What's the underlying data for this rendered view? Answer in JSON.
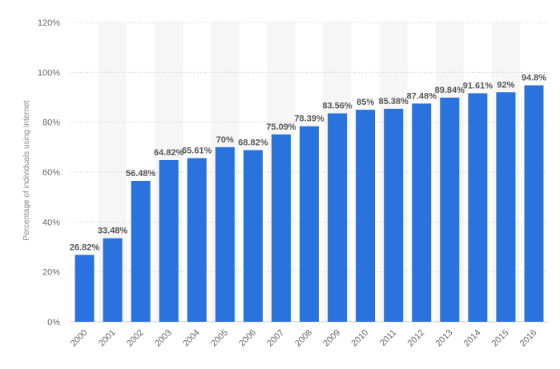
{
  "chart_data": {
    "type": "bar",
    "categories": [
      "2000",
      "2001",
      "2002",
      "2003",
      "2004",
      "2005",
      "2006",
      "2007",
      "2008",
      "2009",
      "2010",
      "2011",
      "2012",
      "2013",
      "2014",
      "2015",
      "2016"
    ],
    "values": [
      26.82,
      33.48,
      56.48,
      64.82,
      65.61,
      70,
      68.82,
      75.09,
      78.39,
      83.56,
      85,
      85.38,
      87.48,
      89.84,
      91.61,
      92,
      94.8
    ],
    "data_labels": [
      "26.82%",
      "33.48%",
      "56.48%",
      "64.82%",
      "65.61%",
      "70%",
      "68.82%",
      "75.09%",
      "78.39%",
      "83.56%",
      "85%",
      "85.38%",
      "87.48%",
      "89.84%",
      "91.61%",
      "92%",
      "94.8%"
    ],
    "ylabel": "Percentage of individuals using Internet",
    "xlabel": "",
    "ylim": [
      0,
      120
    ],
    "y_ticks": [
      0,
      20,
      40,
      60,
      80,
      100,
      120
    ],
    "y_tick_labels": [
      "0%",
      "20%",
      "40%",
      "60%",
      "80%",
      "100%",
      "120%"
    ],
    "grid": "horizontal-dotted",
    "bar_color": "#2a72de",
    "band_color": "#f6f6f6"
  }
}
